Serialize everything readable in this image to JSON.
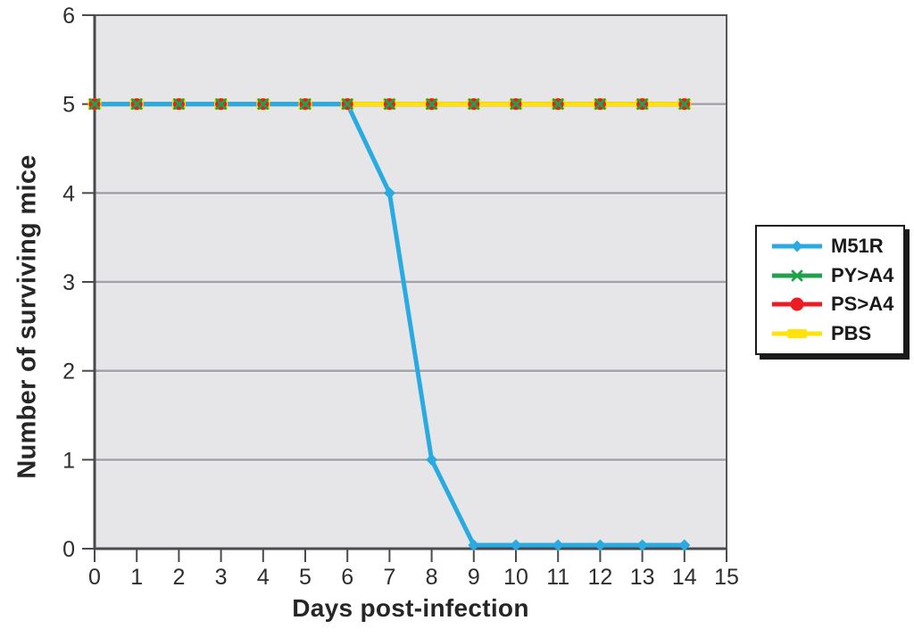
{
  "chart_data": {
    "type": "line",
    "title": "",
    "xlabel": "Days post-infection",
    "ylabel": "Number of surviving mice",
    "x": [
      0,
      1,
      2,
      3,
      4,
      5,
      6,
      7,
      8,
      9,
      10,
      11,
      12,
      13,
      14
    ],
    "xlim": [
      0,
      15
    ],
    "ylim": [
      0,
      6
    ],
    "x_ticks": [
      0,
      1,
      2,
      3,
      4,
      5,
      6,
      7,
      8,
      9,
      10,
      11,
      12,
      13,
      14,
      15
    ],
    "y_ticks": [
      0,
      1,
      2,
      3,
      4,
      5,
      6
    ],
    "grid": "horizontal",
    "legend_position": "right-outside",
    "series": [
      {
        "name": "M51R",
        "color": "#29aae1",
        "marker": "diamond",
        "values": [
          5,
          5,
          5,
          5,
          5,
          5,
          5,
          4,
          1,
          0,
          0,
          0,
          0,
          0,
          0
        ]
      },
      {
        "name": "PY>A4",
        "color": "#1fa34a",
        "marker": "x-cross",
        "values": [
          5,
          5,
          5,
          5,
          5,
          5,
          5,
          5,
          5,
          5,
          5,
          5,
          5,
          5,
          5
        ]
      },
      {
        "name": "PS>A4",
        "color": "#ec1c24",
        "marker": "circle",
        "values": [
          5,
          5,
          5,
          5,
          5,
          5,
          5,
          5,
          5,
          5,
          5,
          5,
          5,
          5,
          5
        ]
      },
      {
        "name": "PBS",
        "color": "#ffe30a",
        "marker": "square",
        "values": [
          5,
          5,
          5,
          5,
          5,
          5,
          5,
          5,
          5,
          5,
          5,
          5,
          5,
          5,
          5
        ]
      }
    ],
    "line_draw_order": [
      1,
      2,
      3,
      0
    ],
    "marker_draw_order": [
      0,
      3,
      2,
      1
    ],
    "colors": {
      "page_bg": "#ffffff",
      "plot_background": "#e6e6e8",
      "grid": "#a2a3ab",
      "grid_highlight": "#f2f2f2",
      "frame": "#55555a",
      "axis": "#4a4a4e",
      "tick_text": "#2e2e2e",
      "title_text": "#262626",
      "legend_border": "#1a1a1a",
      "legend_bg": "#ffffff"
    }
  }
}
